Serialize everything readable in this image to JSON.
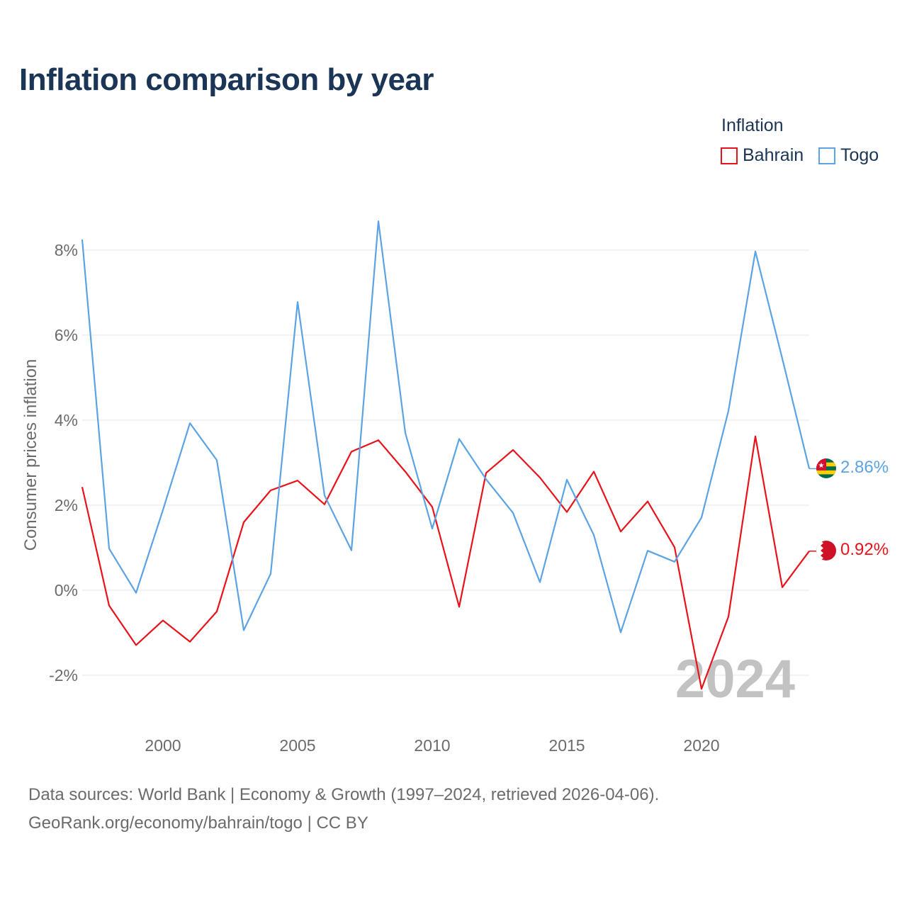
{
  "header": {
    "title": "Inflation comparison by year"
  },
  "legend": {
    "title": "Inflation",
    "items": [
      {
        "name": "Bahrain",
        "color": "#e8131a"
      },
      {
        "name": "Togo",
        "color": "#5ca3e4"
      }
    ]
  },
  "watermark_year": "2024",
  "footer": {
    "line1": "Data sources: World Bank | Economy & Growth (1997–2024, retrieved 2026-04-06).",
    "line2": "GeoRank.org/economy/bahrain/togo | CC BY"
  },
  "chart_data": {
    "type": "line",
    "title": "Inflation comparison by year",
    "xlabel": "",
    "ylabel": "Consumer prices inflation",
    "xlim": [
      1997,
      2024
    ],
    "ylim": [
      -3,
      9
    ],
    "x_ticks": [
      2000,
      2005,
      2010,
      2015,
      2020
    ],
    "x_tick_labels": [
      "2000",
      "2005",
      "2010",
      "2015",
      "2020"
    ],
    "y_ticks": [
      -2,
      0,
      2,
      4,
      6,
      8
    ],
    "y_tick_labels": [
      "-2%",
      "0%",
      "2%",
      "4%",
      "6%",
      "8%"
    ],
    "grid": true,
    "x": [
      1997,
      1998,
      1999,
      2000,
      2001,
      2002,
      2003,
      2004,
      2005,
      2006,
      2007,
      2008,
      2009,
      2010,
      2011,
      2012,
      2013,
      2014,
      2015,
      2016,
      2017,
      2018,
      2019,
      2020,
      2021,
      2022,
      2023,
      2024
    ],
    "series": [
      {
        "name": "Bahrain",
        "color": "#e8131a",
        "values": [
          2.43,
          -0.36,
          -1.29,
          -0.71,
          -1.21,
          -0.5,
          1.6,
          2.35,
          2.58,
          2.02,
          3.26,
          3.53,
          2.79,
          1.96,
          -0.39,
          2.76,
          3.3,
          2.65,
          1.84,
          2.79,
          1.38,
          2.09,
          1.01,
          -2.32,
          -0.62,
          3.62,
          0.07,
          0.92
        ],
        "end_label": "0.92%"
      },
      {
        "name": "Togo",
        "color": "#5ca3e4",
        "values": [
          8.25,
          0.98,
          -0.06,
          1.89,
          3.93,
          3.06,
          -0.94,
          0.39,
          6.78,
          2.23,
          0.94,
          8.68,
          3.7,
          1.45,
          3.56,
          2.61,
          1.82,
          0.19,
          2.6,
          1.3,
          -0.99,
          0.93,
          0.67,
          1.71,
          4.22,
          7.97,
          5.45,
          2.86
        ],
        "end_label": "2.86%"
      }
    ]
  }
}
